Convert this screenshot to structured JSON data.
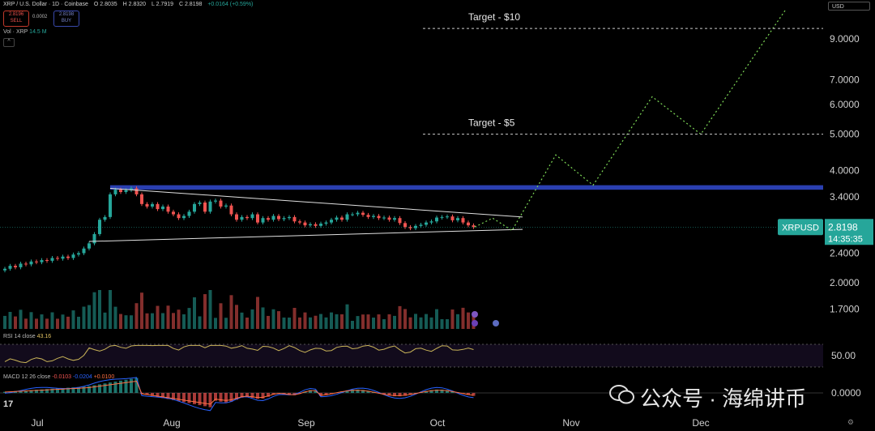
{
  "header": {
    "symbol": "XRP / U.S. Dollar · 1D · Coinbase",
    "open": "O 2.8035",
    "high": "H 2.8320",
    "low": "L 2.7919",
    "close": "C 2.8198",
    "change": "+0.0164 (+0.59%)",
    "sell_price": "2.8196",
    "sell_label": "SELL",
    "spread": "0.0002",
    "buy_price": "2.8198",
    "buy_label": "BUY",
    "volume_label": "Vol · XRP",
    "volume_value": "14.5 M",
    "collapse_icon": "^",
    "currency": "USD"
  },
  "indicators": {
    "rsi_label": "RSI 14 close",
    "rsi_value": "43.16",
    "macd_label": "MACD 12 26 close",
    "macd_value": "-0.0103",
    "macd_signal": "-0.0204",
    "macd_hist": "+0.0100"
  },
  "logo_text": "17",
  "watermark": "公众号 · 海绵讲币",
  "colors": {
    "up": "#26a69a",
    "down": "#ef5350",
    "resistance_band": "#2a3fb0",
    "projection": "#7ed957",
    "target_line": "#cccccc",
    "price_label_bg": "#26a69a",
    "rsi_line": "#c9b458"
  },
  "chart_data": {
    "type": "candlestick",
    "title": "XRP / U.S. Dollar · 1D · Coinbase",
    "price_scale": "log",
    "ylim": [
      1.5,
      11
    ],
    "y_ticks": [
      9.0,
      7.0,
      6.0,
      5.0,
      4.0,
      3.4,
      2.4,
      2.0,
      1.7
    ],
    "y_tick_labels": [
      "9.0000",
      "7.0000",
      "6.0000",
      "5.0000",
      "4.0000",
      "3.4000",
      "2.4000",
      "2.0000",
      "1.7000"
    ],
    "x_tick_labels": [
      "Jul",
      "Aug",
      "Sep",
      "Oct",
      "Nov",
      "Dec"
    ],
    "current_price_label": "XRPUSD",
    "current_price": "2.8198",
    "countdown": "14:35:35",
    "closes": [
      2.18,
      2.22,
      2.2,
      2.25,
      2.24,
      2.28,
      2.27,
      2.3,
      2.29,
      2.33,
      2.32,
      2.35,
      2.33,
      2.38,
      2.4,
      2.47,
      2.55,
      2.7,
      2.95,
      3.0,
      3.45,
      3.55,
      3.5,
      3.54,
      3.58,
      3.45,
      3.25,
      3.2,
      3.25,
      3.15,
      3.2,
      3.1,
      3.05,
      2.98,
      3.02,
      3.1,
      3.25,
      3.28,
      3.1,
      3.3,
      3.32,
      3.2,
      3.22,
      3.05,
      2.95,
      3.0,
      2.98,
      3.05,
      2.9,
      2.98,
      2.95,
      3.02,
      2.96,
      2.98,
      3.0,
      2.92,
      2.9,
      2.85,
      2.87,
      2.84,
      2.88,
      2.9,
      2.95,
      2.99,
      2.95,
      3.05,
      3.05,
      3.08,
      3.04,
      3.0,
      3.02,
      2.98,
      2.99,
      2.95,
      2.98,
      2.89,
      2.82,
      2.8,
      2.84,
      2.86,
      2.9,
      2.92,
      2.99,
      3.0,
      3.01,
      2.94,
      2.98,
      2.9,
      2.85,
      2.82
    ],
    "volume_note": "Vol · XRP 14.5 M",
    "resistance_zone": [
      3.55,
      3.65
    ],
    "triangle": {
      "upper_start": 3.58,
      "upper_end": 3.0,
      "lower_start": 2.58,
      "lower_end": 2.78
    },
    "projection_path": [
      2.82,
      2.98,
      2.76,
      4.4,
      3.65,
      6.3,
      5.0,
      10.8
    ],
    "annotations": [
      {
        "label": "Target - $10",
        "price": 9.6
      },
      {
        "label": "Target - $5",
        "price": 5.0
      }
    ],
    "rsi": {
      "current": 43.16,
      "reference": 50.0,
      "reference_label": "50.00"
    },
    "macd": {
      "macd": -0.0103,
      "signal": -0.0204,
      "histogram": 0.01,
      "reference_label": "0.0000"
    }
  }
}
